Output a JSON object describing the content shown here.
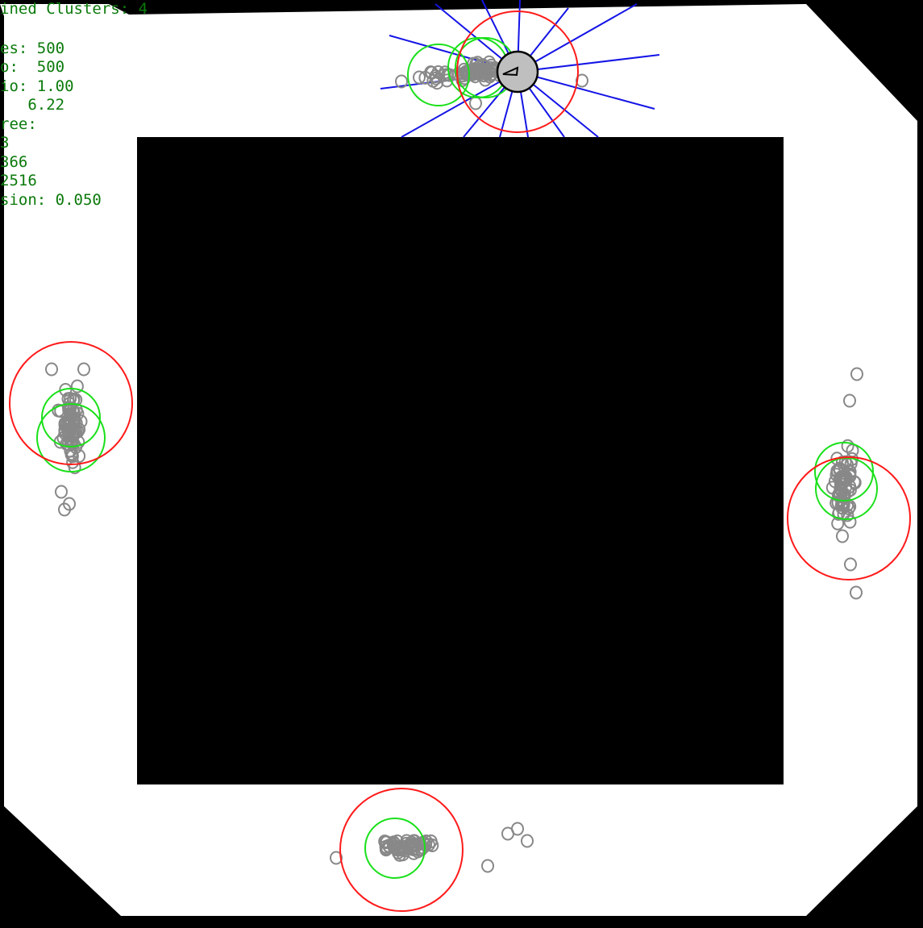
{
  "hud": {
    "lines": [
      "ined Clusters: 4",
      "",
      "es: 500",
      "o:  500",
      "io: 1.00",
      "   6.22",
      "ree:",
      "3",
      "366",
      "2516",
      "sion: 0.050"
    ]
  },
  "colors": {
    "background": "#000000",
    "free_space": "#ffffff",
    "obstacle": "#000000",
    "particle": "#888888",
    "cluster_estimate": "#ff1a1a",
    "cluster_candidate": "#19e019",
    "laser_ray": "#1414e6",
    "robot_fill": "#bfbfbf",
    "text": "#0b7a0b"
  },
  "icons": {
    "robot": "robot-pose-icon",
    "particle": "particle-circle"
  }
}
